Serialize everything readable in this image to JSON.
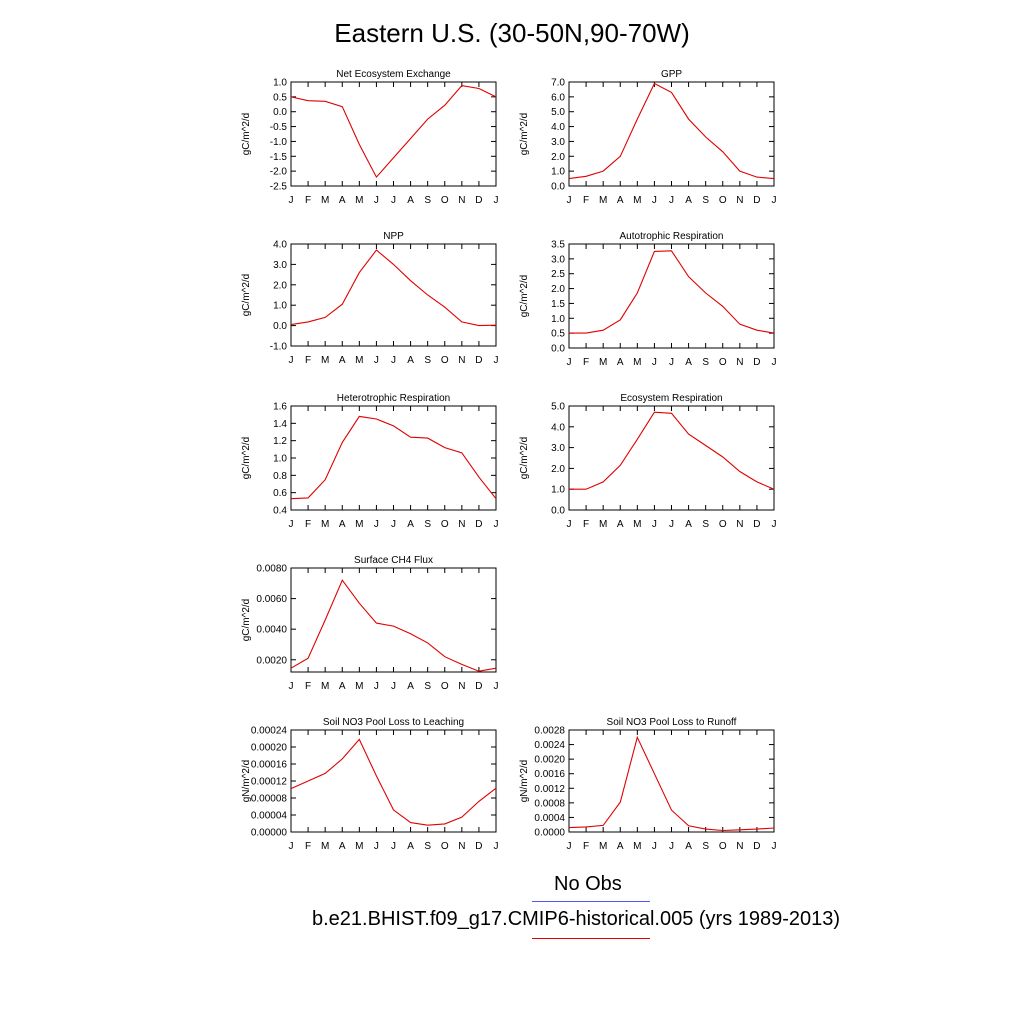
{
  "title": "Eastern U.S. (30-50N,90-70W)",
  "months": [
    "J",
    "F",
    "M",
    "A",
    "M",
    "J",
    "J",
    "A",
    "S",
    "O",
    "N",
    "D",
    "J"
  ],
  "colors": {
    "model": "#e00000",
    "obs": "#5555ff"
  },
  "legend": {
    "obs_label": "No Obs",
    "model_label": "b.e21.BHIST.f09_g17.CMIP6-historical.005 (yrs 1989-2013)"
  },
  "chart_data": [
    {
      "type": "line",
      "title": "Net Ecosystem Exchange",
      "ylabel": "gC/m^2/d",
      "ylim": [
        -2.5,
        1.0
      ],
      "yticks": [
        "1.0",
        "0.5",
        "0.0",
        "-0.5",
        "-1.0",
        "-1.5",
        "-2.0",
        "-2.5"
      ],
      "ytick_values": [
        1.0,
        0.5,
        0.0,
        -0.5,
        -1.0,
        -1.5,
        -2.0,
        -2.5
      ],
      "values": [
        0.5,
        0.37,
        0.35,
        0.17,
        -1.1,
        -2.2,
        -1.55,
        -0.9,
        -0.25,
        0.22,
        0.88,
        0.78,
        0.5
      ]
    },
    {
      "type": "line",
      "title": "GPP",
      "ylabel": "gC/m^2/d",
      "ylim": [
        0.0,
        7.0
      ],
      "yticks": [
        "7.0",
        "6.0",
        "5.0",
        "4.0",
        "3.0",
        "2.0",
        "1.0",
        "0.0"
      ],
      "ytick_values": [
        7,
        6,
        5,
        4,
        3,
        2,
        1,
        0
      ],
      "values": [
        0.5,
        0.65,
        1.0,
        2.0,
        4.5,
        6.9,
        6.3,
        4.5,
        3.3,
        2.3,
        1.0,
        0.6,
        0.5
      ]
    },
    {
      "type": "line",
      "title": "NPP",
      "ylabel": "gC/m^2/d",
      "ylim": [
        -1.0,
        4.0
      ],
      "yticks": [
        "4.0",
        "3.0",
        "2.0",
        "1.0",
        "0.0",
        "-1.0"
      ],
      "ytick_values": [
        4,
        3,
        2,
        1,
        0,
        -1
      ],
      "values": [
        0.05,
        0.18,
        0.4,
        1.05,
        2.6,
        3.7,
        3.0,
        2.2,
        1.5,
        0.9,
        0.18,
        0.0,
        0.02
      ]
    },
    {
      "type": "line",
      "title": "Autotrophic Respiration",
      "ylabel": "gC/m^2/d",
      "ylim": [
        0.0,
        3.5
      ],
      "yticks": [
        "3.5",
        "3.0",
        "2.5",
        "2.0",
        "1.5",
        "1.0",
        "0.5",
        "0.0"
      ],
      "ytick_values": [
        3.5,
        3.0,
        2.5,
        2.0,
        1.5,
        1.0,
        0.5,
        0.0
      ],
      "values": [
        0.5,
        0.5,
        0.6,
        0.95,
        1.85,
        3.25,
        3.27,
        2.4,
        1.85,
        1.4,
        0.8,
        0.6,
        0.5
      ]
    },
    {
      "type": "line",
      "title": "Heterotrophic Respiration",
      "ylabel": "gC/m^2/d",
      "ylim": [
        0.4,
        1.6
      ],
      "yticks": [
        "1.6",
        "1.4",
        "1.2",
        "1.0",
        "0.8",
        "0.6",
        "0.4"
      ],
      "ytick_values": [
        1.6,
        1.4,
        1.2,
        1.0,
        0.8,
        0.6,
        0.4
      ],
      "values": [
        0.53,
        0.54,
        0.75,
        1.18,
        1.48,
        1.45,
        1.37,
        1.24,
        1.23,
        1.12,
        1.06,
        0.78,
        0.53
      ]
    },
    {
      "type": "line",
      "title": "Ecosystem Respiration",
      "ylabel": "gC/m^2/d",
      "ylim": [
        0.0,
        5.0
      ],
      "yticks": [
        "5.0",
        "4.0",
        "3.0",
        "2.0",
        "1.0",
        "0.0"
      ],
      "ytick_values": [
        5,
        4,
        3,
        2,
        1,
        0
      ],
      "values": [
        1.0,
        1.0,
        1.35,
        2.15,
        3.4,
        4.7,
        4.65,
        3.65,
        3.1,
        2.55,
        1.85,
        1.35,
        1.0
      ]
    },
    {
      "type": "line",
      "title": "Surface CH4 Flux",
      "ylabel": "gC/m^2/d",
      "ylim": [
        0.0012,
        0.008
      ],
      "yticks": [
        "0.0080",
        "0.0060",
        "0.0040",
        "0.0020"
      ],
      "ytick_values": [
        0.008,
        0.006,
        0.004,
        0.002
      ],
      "values": [
        0.00145,
        0.0021,
        0.0046,
        0.0072,
        0.0057,
        0.0044,
        0.0042,
        0.0037,
        0.0031,
        0.0022,
        0.0017,
        0.00125,
        0.00145
      ]
    },
    {
      "type": "line",
      "title": "Soil NO3 Pool Loss to Leaching",
      "ylabel": "gN/m^2/d",
      "ylim": [
        0.0,
        0.00024
      ],
      "yticks": [
        "0.00024",
        "0.00020",
        "0.00016",
        "0.00012",
        "0.00008",
        "0.00004",
        "0.00000"
      ],
      "ytick_values": [
        0.00024,
        0.0002,
        0.00016,
        0.00012,
        8e-05,
        4e-05,
        0.0
      ],
      "values": [
        0.000102,
        0.00012,
        0.000138,
        0.000172,
        0.000218,
        0.000132,
        5.2e-05,
        2.2e-05,
        1.6e-05,
        1.9e-05,
        3.5e-05,
        7.2e-05,
        0.000103
      ]
    },
    {
      "type": "line",
      "title": "Soil NO3 Pool Loss to Runoff",
      "ylabel": "gN/m^2/d",
      "ylim": [
        0.0,
        0.0028
      ],
      "yticks": [
        "0.0028",
        "0.0024",
        "0.0020",
        "0.0016",
        "0.0012",
        "0.0008",
        "0.0004",
        "0.0000"
      ],
      "ytick_values": [
        0.0028,
        0.0024,
        0.002,
        0.0016,
        0.0012,
        0.0008,
        0.0004,
        0.0
      ],
      "values": [
        0.00012,
        0.00014,
        0.00018,
        0.00082,
        0.0026,
        0.0016,
        0.0006,
        0.00017,
        8e-05,
        4e-05,
        6e-05,
        8e-05,
        0.00011
      ]
    }
  ]
}
